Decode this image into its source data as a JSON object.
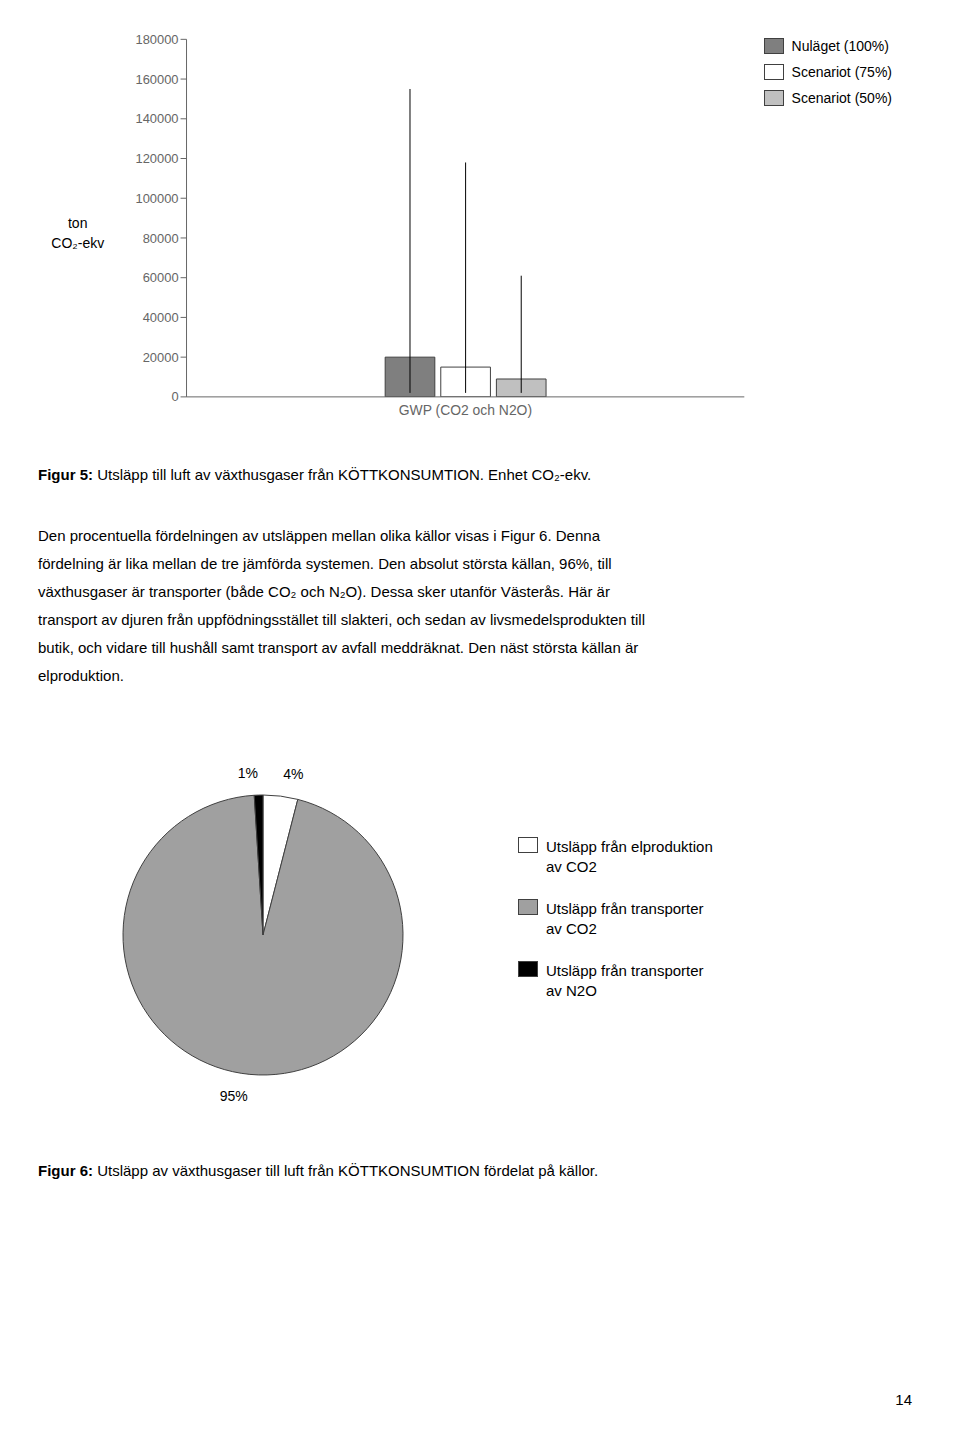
{
  "chart_data": [
    {
      "type": "bar",
      "ylabel": "ton\nCO₂-ekv",
      "categories": [
        "GWP (CO2 och N2O)"
      ],
      "series": [
        {
          "name": "Nuläget (100%)",
          "color": "#7f7f7f",
          "values": [
            20000
          ],
          "errors_upper": [
            135000
          ],
          "errors_lower": [
            18000
          ]
        },
        {
          "name": "Scenariot (75%)",
          "color": "#ffffff",
          "values": [
            15000
          ],
          "errors_upper": [
            103000
          ],
          "errors_lower": [
            13000
          ]
        },
        {
          "name": "Scenariot (50%)",
          "color": "#c0c0c0",
          "values": [
            9000
          ],
          "errors_upper": [
            52000
          ],
          "errors_lower": [
            7000
          ]
        }
      ],
      "ylim": [
        0,
        180000
      ],
      "yticks": [
        0,
        20000,
        40000,
        60000,
        80000,
        100000,
        120000,
        140000,
        160000,
        180000
      ],
      "grid": false,
      "legend": "upper right",
      "caption": "Figur 5: Utsläpp till luft av växthusgaser från KÖTTKONSUMTION. Enhet CO₂-ekv."
    },
    {
      "type": "pie",
      "categories": [
        "Utsläpp från elproduktion\nav CO2",
        "Utsläpp från transporter\nav CO2",
        "Utsläpp från transporter\nav N2O"
      ],
      "values": [
        4,
        95,
        1
      ],
      "value_labels": [
        "4%",
        "95%",
        "1%"
      ],
      "colors": [
        "#ffffff",
        "#a0a0a0",
        "#000000"
      ],
      "legend": "right",
      "caption": "Figur 6: Utsläpp av växthusgaser till luft från KÖTTKONSUMTION fördelat på källor."
    }
  ],
  "body_text": [
    "Den procentuella fördelningen av utsläppen mellan olika källor visas i Figur 6. Denna",
    "fördelning är lika mellan de tre jämförda systemen. Den absolut största källan, 96%, till",
    "växthusgaser är transporter (både CO₂ och N₂O). Dessa sker utanför Västerås. Här är",
    "transport av djuren från uppfödningsstället till slakteri, och sedan av livsmedelsprodukten till",
    "butik, och vidare till hushåll samt transport av avfall meddräknat. Den näst största källan är",
    "elproduktion."
  ],
  "page_number": "14"
}
